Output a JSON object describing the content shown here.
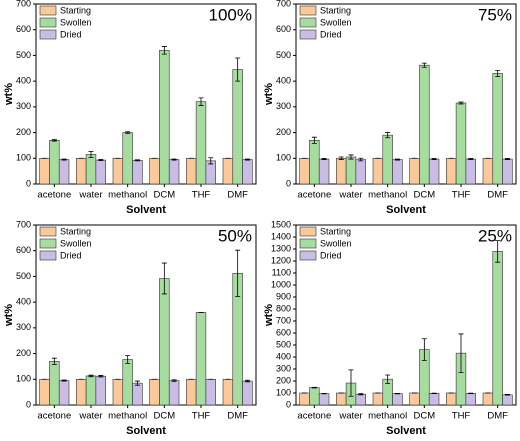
{
  "chart_data": [
    {
      "type": "bar",
      "title": "100%",
      "xlabel": "Solvent",
      "ylabel": "wt%",
      "categories": [
        "acetone",
        "water",
        "methanol",
        "DCM",
        "THF",
        "DMF"
      ],
      "ylim": [
        0,
        700
      ],
      "yticks": [
        0,
        100,
        200,
        300,
        400,
        500,
        600,
        700
      ],
      "legend": "upper left",
      "series": [
        {
          "name": "Starting",
          "color": "#f9c89b",
          "values": [
            100,
            100,
            100,
            100,
            100,
            100
          ],
          "errors": [
            0,
            0,
            0,
            0,
            0,
            0
          ]
        },
        {
          "name": "Swollen",
          "color": "#a8dba0",
          "values": [
            170,
            115,
            200,
            520,
            320,
            445
          ],
          "errors": [
            3,
            12,
            3,
            15,
            15,
            45
          ]
        },
        {
          "name": "Dried",
          "color": "#c9bde3",
          "values": [
            95,
            93,
            92,
            95,
            90,
            95
          ],
          "errors": [
            2,
            2,
            2,
            2,
            12,
            2
          ]
        }
      ]
    },
    {
      "type": "bar",
      "title": "75%",
      "xlabel": "Solvent",
      "ylabel": "wt%",
      "categories": [
        "acetone",
        "water",
        "methanol",
        "DCM",
        "THF",
        "DMF"
      ],
      "ylim": [
        0,
        700
      ],
      "yticks": [
        0,
        100,
        200,
        300,
        400,
        500,
        600,
        700
      ],
      "legend": "upper left",
      "series": [
        {
          "name": "Starting",
          "color": "#f9c89b",
          "values": [
            100,
            100,
            100,
            100,
            100,
            100
          ],
          "errors": [
            0,
            5,
            0,
            0,
            0,
            0
          ]
        },
        {
          "name": "Swollen",
          "color": "#a8dba0",
          "values": [
            170,
            105,
            190,
            462,
            315,
            430
          ],
          "errors": [
            12,
            8,
            10,
            8,
            4,
            12
          ]
        },
        {
          "name": "Dried",
          "color": "#c9bde3",
          "values": [
            97,
            95,
            95,
            97,
            97,
            97
          ],
          "errors": [
            2,
            5,
            2,
            2,
            2,
            2
          ]
        }
      ]
    },
    {
      "type": "bar",
      "title": "50%",
      "xlabel": "Solvent",
      "ylabel": "wt%",
      "categories": [
        "acetone",
        "water",
        "methanol",
        "DCM",
        "THF",
        "DMF"
      ],
      "ylim": [
        0,
        700
      ],
      "yticks": [
        0,
        100,
        200,
        300,
        400,
        500,
        600,
        700
      ],
      "legend": "upper left",
      "series": [
        {
          "name": "Starting",
          "color": "#f9c89b",
          "values": [
            100,
            100,
            100,
            100,
            100,
            100
          ],
          "errors": [
            0,
            0,
            0,
            0,
            0,
            0
          ]
        },
        {
          "name": "Swollen",
          "color": "#a8dba0",
          "values": [
            170,
            113,
            177,
            492,
            360,
            512
          ],
          "errors": [
            12,
            3,
            15,
            60,
            0,
            90
          ]
        },
        {
          "name": "Dried",
          "color": "#c9bde3",
          "values": [
            95,
            112,
            85,
            95,
            100,
            93
          ],
          "errors": [
            2,
            3,
            8,
            3,
            0,
            3
          ]
        }
      ]
    },
    {
      "type": "bar",
      "title": "25%",
      "xlabel": "Solvent",
      "ylabel": "wt%",
      "categories": [
        "acetone",
        "water",
        "methanol",
        "DCM",
        "THF",
        "DMF"
      ],
      "ylim": [
        0,
        1500
      ],
      "yticks": [
        0,
        100,
        200,
        300,
        400,
        500,
        600,
        700,
        800,
        900,
        1000,
        1100,
        1200,
        1300,
        1400,
        1500
      ],
      "legend": "upper left",
      "series": [
        {
          "name": "Starting",
          "color": "#f9c89b",
          "values": [
            100,
            100,
            100,
            100,
            100,
            100
          ],
          "errors": [
            0,
            0,
            0,
            0,
            0,
            0
          ]
        },
        {
          "name": "Swollen",
          "color": "#a8dba0",
          "values": [
            145,
            183,
            215,
            462,
            432,
            1280
          ],
          "errors": [
            3,
            110,
            35,
            90,
            160,
            90
          ]
        },
        {
          "name": "Dried",
          "color": "#c9bde3",
          "values": [
            95,
            90,
            95,
            97,
            97,
            85
          ],
          "errors": [
            2,
            5,
            2,
            2,
            2,
            3
          ]
        }
      ]
    }
  ]
}
